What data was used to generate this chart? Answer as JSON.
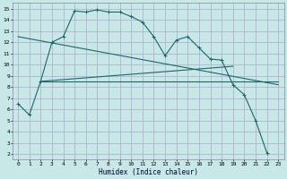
{
  "title": "",
  "xlabel": "Humidex (Indice chaleur)",
  "bg_color": "#c8e8e8",
  "grid_color": "#aaaacc",
  "line_color": "#1a6868",
  "xlim": [
    -0.5,
    23.5
  ],
  "ylim": [
    1.5,
    15.5
  ],
  "xticks": [
    0,
    1,
    2,
    3,
    4,
    5,
    6,
    7,
    8,
    9,
    10,
    11,
    12,
    13,
    14,
    15,
    16,
    17,
    18,
    19,
    20,
    21,
    22,
    23
  ],
  "yticks": [
    2,
    3,
    4,
    5,
    6,
    7,
    8,
    9,
    10,
    11,
    12,
    13,
    14,
    15
  ],
  "line1_x": [
    0,
    1,
    2,
    3,
    4,
    5,
    6,
    7,
    8,
    9,
    10,
    11,
    12,
    13,
    14,
    15,
    16,
    17,
    18,
    19,
    20,
    21,
    22
  ],
  "line1_y": [
    6.5,
    5.5,
    8.5,
    12.0,
    12.5,
    14.8,
    14.7,
    14.9,
    14.7,
    14.7,
    14.3,
    13.8,
    12.5,
    10.8,
    12.2,
    12.5,
    11.5,
    10.5,
    10.4,
    8.2,
    7.3,
    5.0,
    2.1
  ],
  "line2_x": [
    2,
    23
  ],
  "line2_y": [
    8.5,
    8.5
  ],
  "line3_x": [
    2,
    19
  ],
  "line3_y": [
    8.5,
    9.85
  ],
  "line4_x": [
    0,
    23
  ],
  "line4_y": [
    12.5,
    8.2
  ]
}
